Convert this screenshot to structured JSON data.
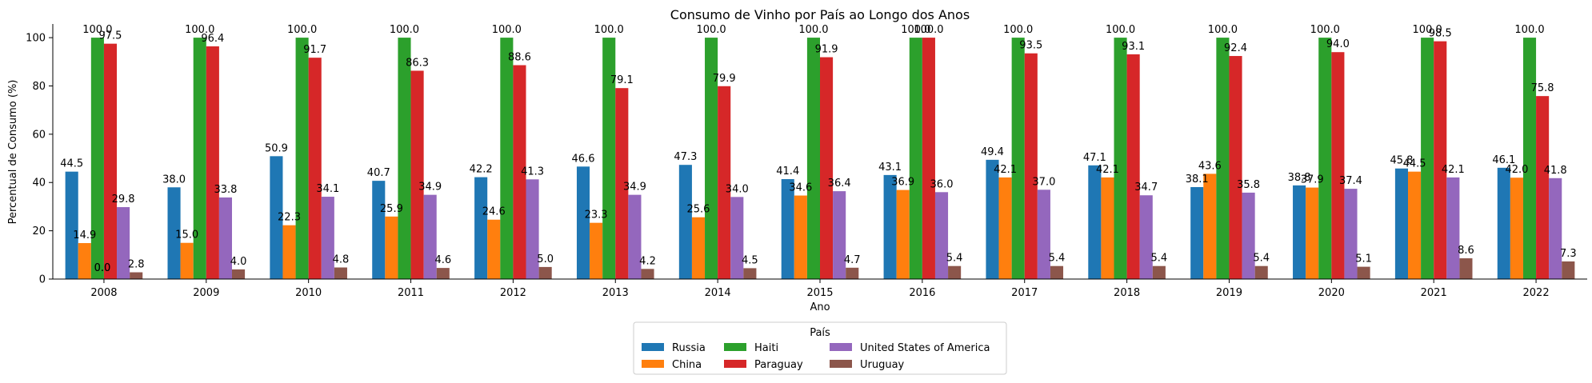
{
  "chart_data": {
    "type": "bar",
    "title": "Consumo de Vinho por País ao Longo dos Anos",
    "xlabel": "Ano",
    "ylabel": "Percentual de Consumo (%)",
    "ylim": [
      0,
      105
    ],
    "yticks": [
      0,
      20,
      40,
      60,
      80,
      100
    ],
    "grid": false,
    "legend_title": "País",
    "legend_position": "bottom-center",
    "categories": [
      "2008",
      "2009",
      "2010",
      "2011",
      "2012",
      "2013",
      "2014",
      "2015",
      "2016",
      "2017",
      "2018",
      "2019",
      "2020",
      "2021",
      "2022"
    ],
    "series": [
      {
        "name": "Russia",
        "color": "#1f77b4",
        "values": [
          44.5,
          38.0,
          50.9,
          40.7,
          42.2,
          46.6,
          47.3,
          41.4,
          43.1,
          49.4,
          47.1,
          38.1,
          38.8,
          45.8,
          46.1
        ]
      },
      {
        "name": "China",
        "color": "#ff7f0e",
        "values": [
          14.9,
          15.0,
          22.3,
          25.9,
          24.6,
          23.3,
          25.6,
          34.6,
          36.9,
          42.1,
          42.1,
          43.6,
          37.9,
          44.5,
          42.0
        ]
      },
      {
        "name": "Haiti",
        "color": "#2ca02c",
        "values": [
          100.0,
          100.0,
          100.0,
          100.0,
          100.0,
          100.0,
          100.0,
          100.0,
          100.0,
          100.0,
          100.0,
          100.0,
          100.0,
          100.0,
          100.0
        ]
      },
      {
        "name": "Paraguay",
        "color": "#d62728",
        "values": [
          97.5,
          96.4,
          91.7,
          86.3,
          88.6,
          79.1,
          79.9,
          91.9,
          100.0,
          93.5,
          93.1,
          92.4,
          94.0,
          98.5,
          75.8
        ]
      },
      {
        "name": "United States of America",
        "color": "#9467bd",
        "values": [
          29.8,
          33.8,
          34.1,
          34.9,
          41.3,
          34.9,
          34.0,
          36.4,
          36.0,
          37.0,
          34.7,
          35.8,
          37.4,
          42.1,
          41.8
        ]
      },
      {
        "name": "Uruguay",
        "color": "#8c564b",
        "values": [
          2.8,
          4.0,
          4.8,
          4.6,
          5.0,
          4.2,
          4.5,
          4.7,
          5.4,
          5.4,
          5.4,
          5.4,
          5.1,
          8.6,
          7.3
        ]
      }
    ],
    "extra_labels": [
      {
        "category": "2008",
        "text": "0.0"
      },
      {
        "category": "2008",
        "text": "0.0"
      }
    ]
  }
}
